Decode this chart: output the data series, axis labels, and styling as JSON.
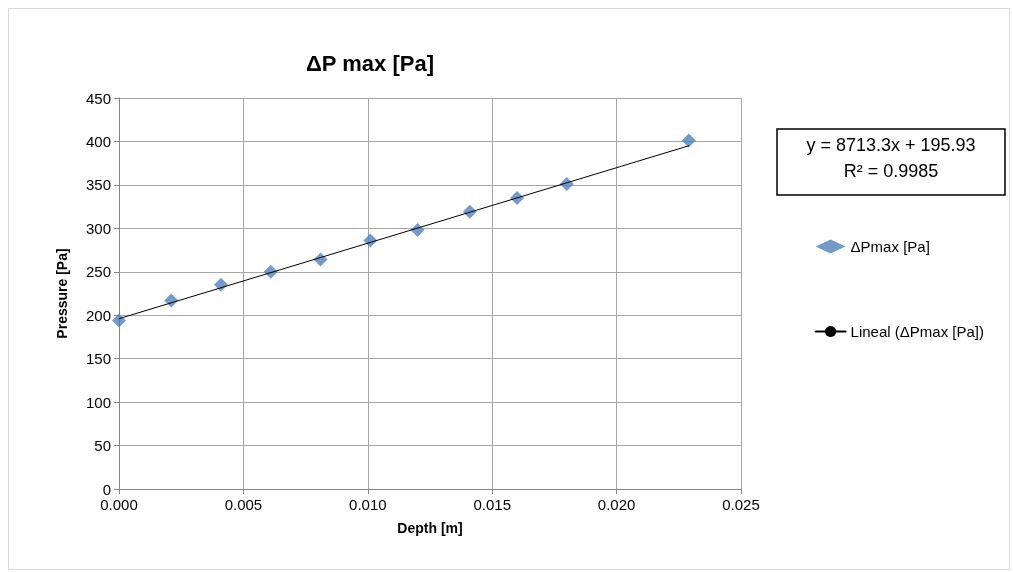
{
  "chart_data": {
    "type": "scatter",
    "title": "ΔP max [Pa]",
    "xlabel": "Depth [m]",
    "ylabel": "Pressure [Pa]",
    "annotations": [
      "y = 8713.3x + 195.93",
      "R² = 0.9985"
    ],
    "series": [
      {
        "name": "ΔPmax [Pa]",
        "color": "#4f81bd",
        "x": [
          0,
          0.0021,
          0.0041,
          0.0061,
          0.0081,
          0.0101,
          0.012,
          0.0141,
          0.016,
          0.018,
          0.0229
        ],
        "values": [
          194,
          217,
          235,
          250,
          264,
          286,
          298,
          319,
          335,
          351,
          401
        ]
      },
      {
        "name": "Lineal (ΔPmax [Pa])",
        "type": "line",
        "color": "#000000",
        "x": [
          0,
          0.0229
        ],
        "values": [
          196,
          395
        ],
        "marker": "none",
        "line_style": "solid"
      }
    ],
    "xlim": [
      0,
      0.025
    ],
    "xticks": [
      {
        "value": 0,
        "label": "0.000"
      },
      {
        "value": 0.005,
        "label": "0.005"
      },
      {
        "value": 0.01,
        "label": "0.010"
      },
      {
        "value": 0.015,
        "label": "0.015"
      },
      {
        "value": 0.02,
        "label": "0.020"
      },
      {
        "value": 0.025,
        "label": "0.025"
      }
    ],
    "ylim": [
      0,
      450
    ],
    "yticks": [
      0,
      50,
      100,
      150,
      200,
      250,
      300,
      350,
      400,
      450
    ],
    "grid": true,
    "legend": "right",
    "marker": "diamond"
  }
}
